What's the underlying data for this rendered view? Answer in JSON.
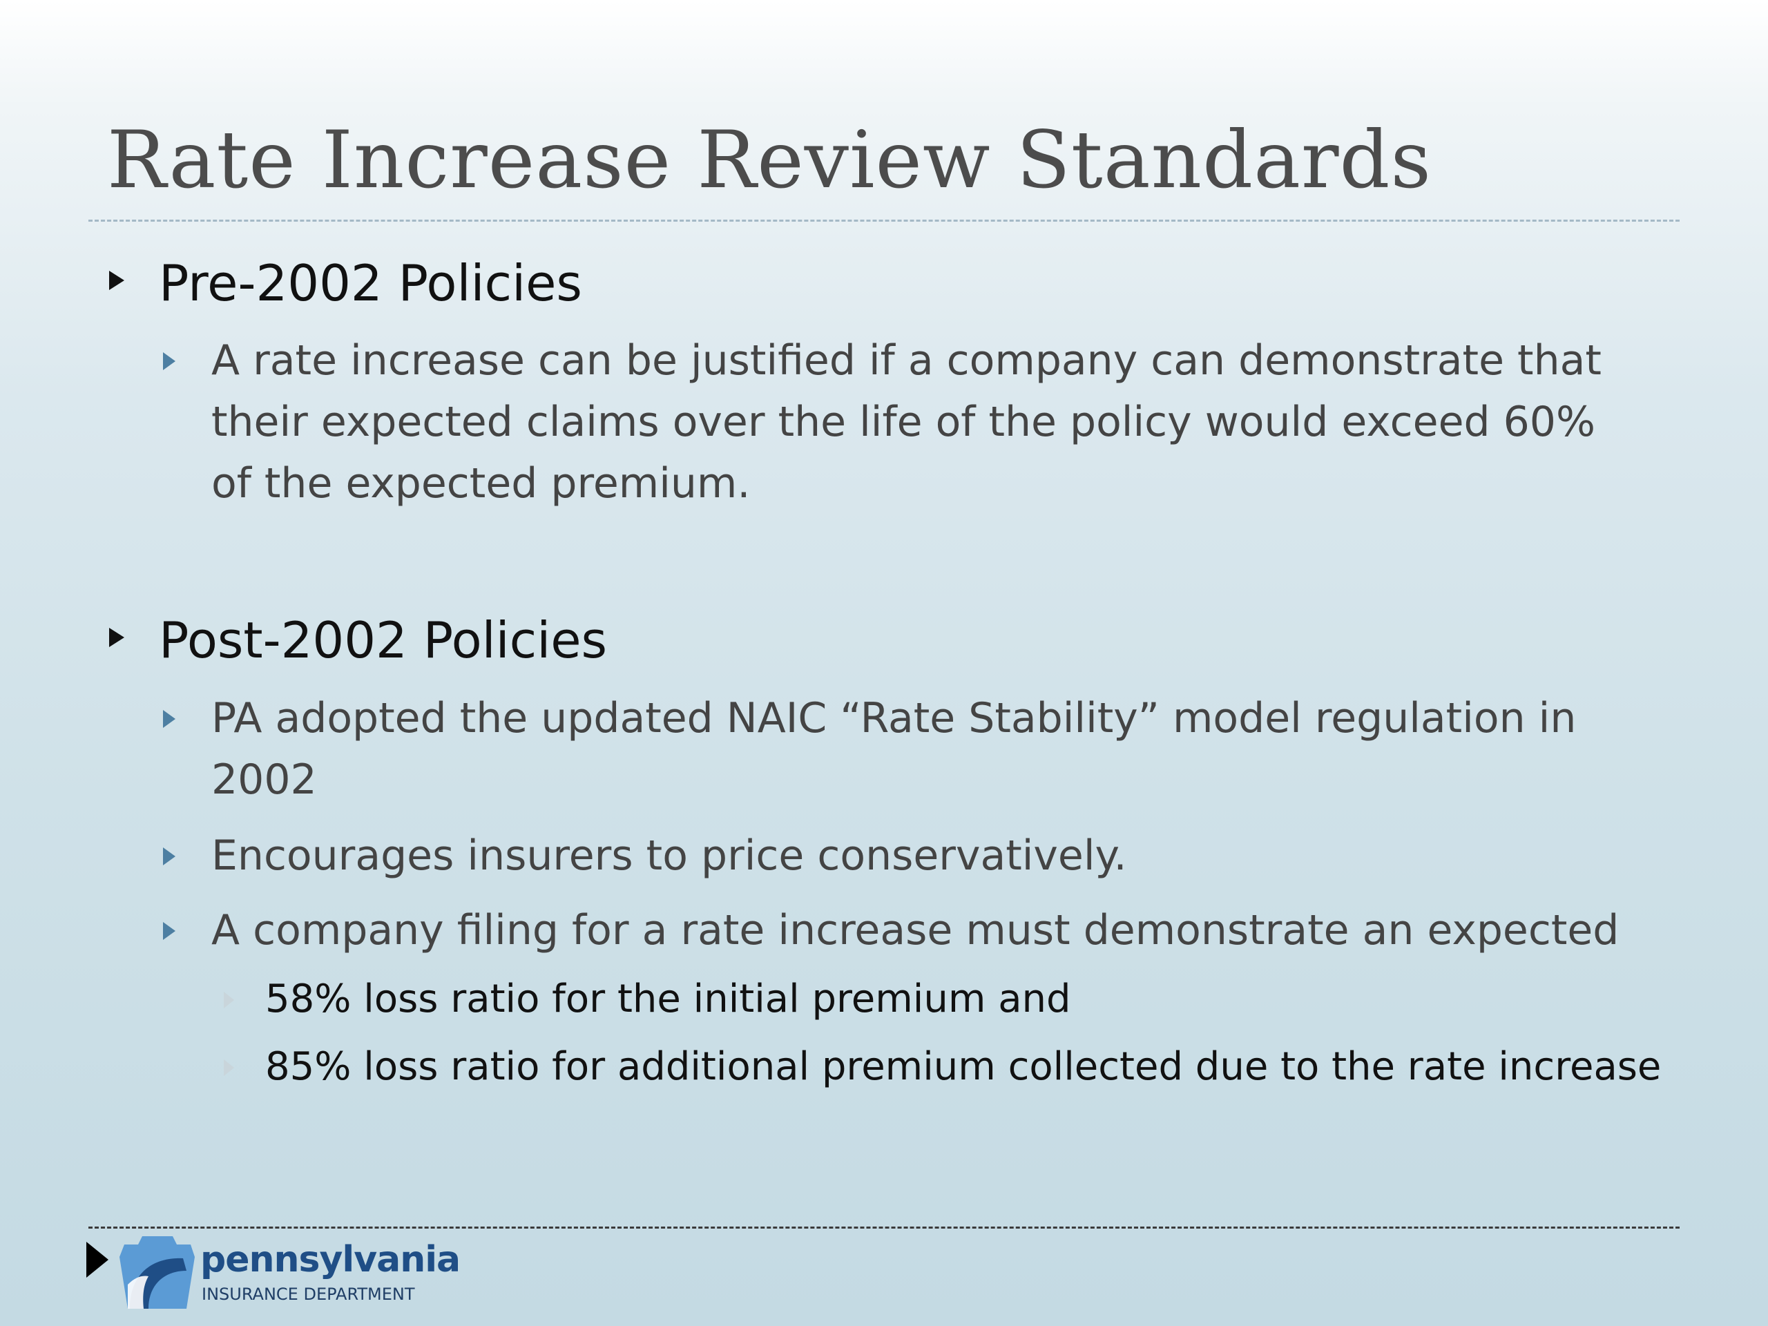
{
  "slide": {
    "title": "Rate Increase Review Standards",
    "sections": [
      {
        "heading": "Pre-2002 Policies",
        "bullets": [
          {
            "text": "A rate increase can be justified if a company can demonstrate that their expected claims over the life of the policy would exceed 60% of the expected premium."
          }
        ]
      },
      {
        "heading": "Post-2002 Policies",
        "bullets": [
          {
            "text": "PA adopted the updated NAIC “Rate Stability” model regulation in 2002"
          },
          {
            "text": "Encourages insurers to price conservatively."
          },
          {
            "text": "A company filing for a rate increase must demonstrate an expected"
          }
        ],
        "sub_bullets": [
          "58% loss ratio for the initial premium and",
          "85% loss ratio for additional premium collected due to the rate increase"
        ]
      }
    ]
  },
  "logo": {
    "wordmark": "pennsylvania",
    "subtitle": "INSURANCE DEPARTMENT",
    "icon": "keystone-icon",
    "colors": {
      "primary": "#1f4e86",
      "light": "#5b9bd5"
    }
  }
}
